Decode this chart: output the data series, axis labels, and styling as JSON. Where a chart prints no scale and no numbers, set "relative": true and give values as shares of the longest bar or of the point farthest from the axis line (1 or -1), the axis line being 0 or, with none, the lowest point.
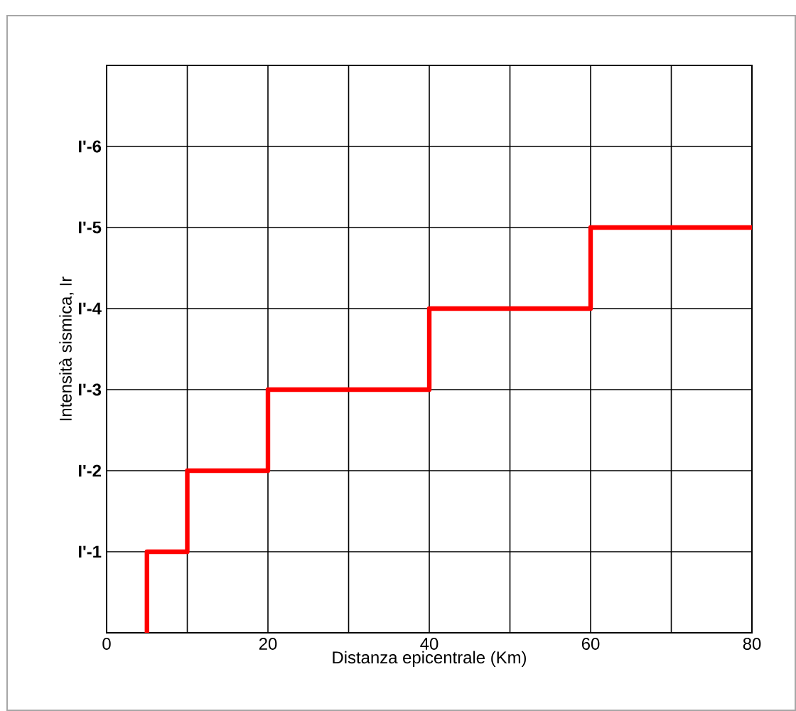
{
  "chart_data": {
    "type": "step",
    "relative": true,
    "xlabel": "Distanza epicentrale (Km)",
    "ylabel": "Intensità sismica, Ir",
    "x": [
      5,
      10,
      20,
      40,
      60,
      80
    ],
    "series": [
      {
        "color": "#ff0000",
        "values": [
          0,
          0.2,
          0.4,
          0.6,
          0.8,
          1
        ]
      }
    ],
    "xlim": [
      0,
      80
    ],
    "xticks": [
      0,
      {
        "value": 10,
        "label": null
      },
      20,
      {
        "value": 30,
        "label": null
      },
      40,
      {
        "value": 50,
        "label": null
      },
      60,
      {
        "value": 70,
        "label": null
      },
      80
    ],
    "annotations": [
      "I'-1",
      "I'-2",
      "I'-3",
      "I'-4",
      "I'-5",
      "I'-6"
    ],
    "grid": true,
    "marker": "none",
    "line_style": "solid"
  }
}
